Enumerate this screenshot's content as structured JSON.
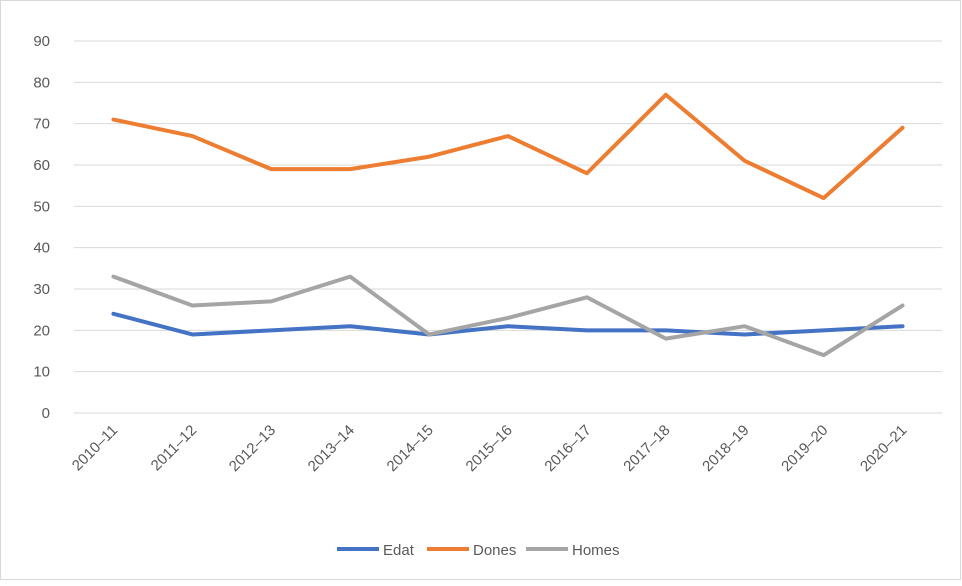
{
  "chart_data": {
    "type": "line",
    "categories": [
      "2010–11",
      "2011–12",
      "2012–13",
      "2013–14",
      "2014–15",
      "2015–16",
      "2016–17",
      "2017–18",
      "2018–19",
      "2019–20",
      "2020–21"
    ],
    "series": [
      {
        "name": "Edat",
        "color": "#4472c4",
        "values": [
          24,
          19,
          20,
          21,
          19,
          21,
          20,
          20,
          19,
          20,
          21
        ]
      },
      {
        "name": "Dones",
        "color": "#ed7d31",
        "values": [
          71,
          67,
          59,
          59,
          62,
          67,
          58,
          77,
          61,
          52,
          69
        ]
      },
      {
        "name": "Homes",
        "color": "#a5a5a5",
        "values": [
          33,
          26,
          27,
          33,
          19,
          23,
          28,
          18,
          21,
          14,
          26
        ]
      }
    ],
    "ylim": [
      0,
      90
    ],
    "yticks": [
      0,
      10,
      20,
      30,
      40,
      50,
      60,
      70,
      80,
      90
    ],
    "grid": true,
    "legend": "bottom"
  }
}
